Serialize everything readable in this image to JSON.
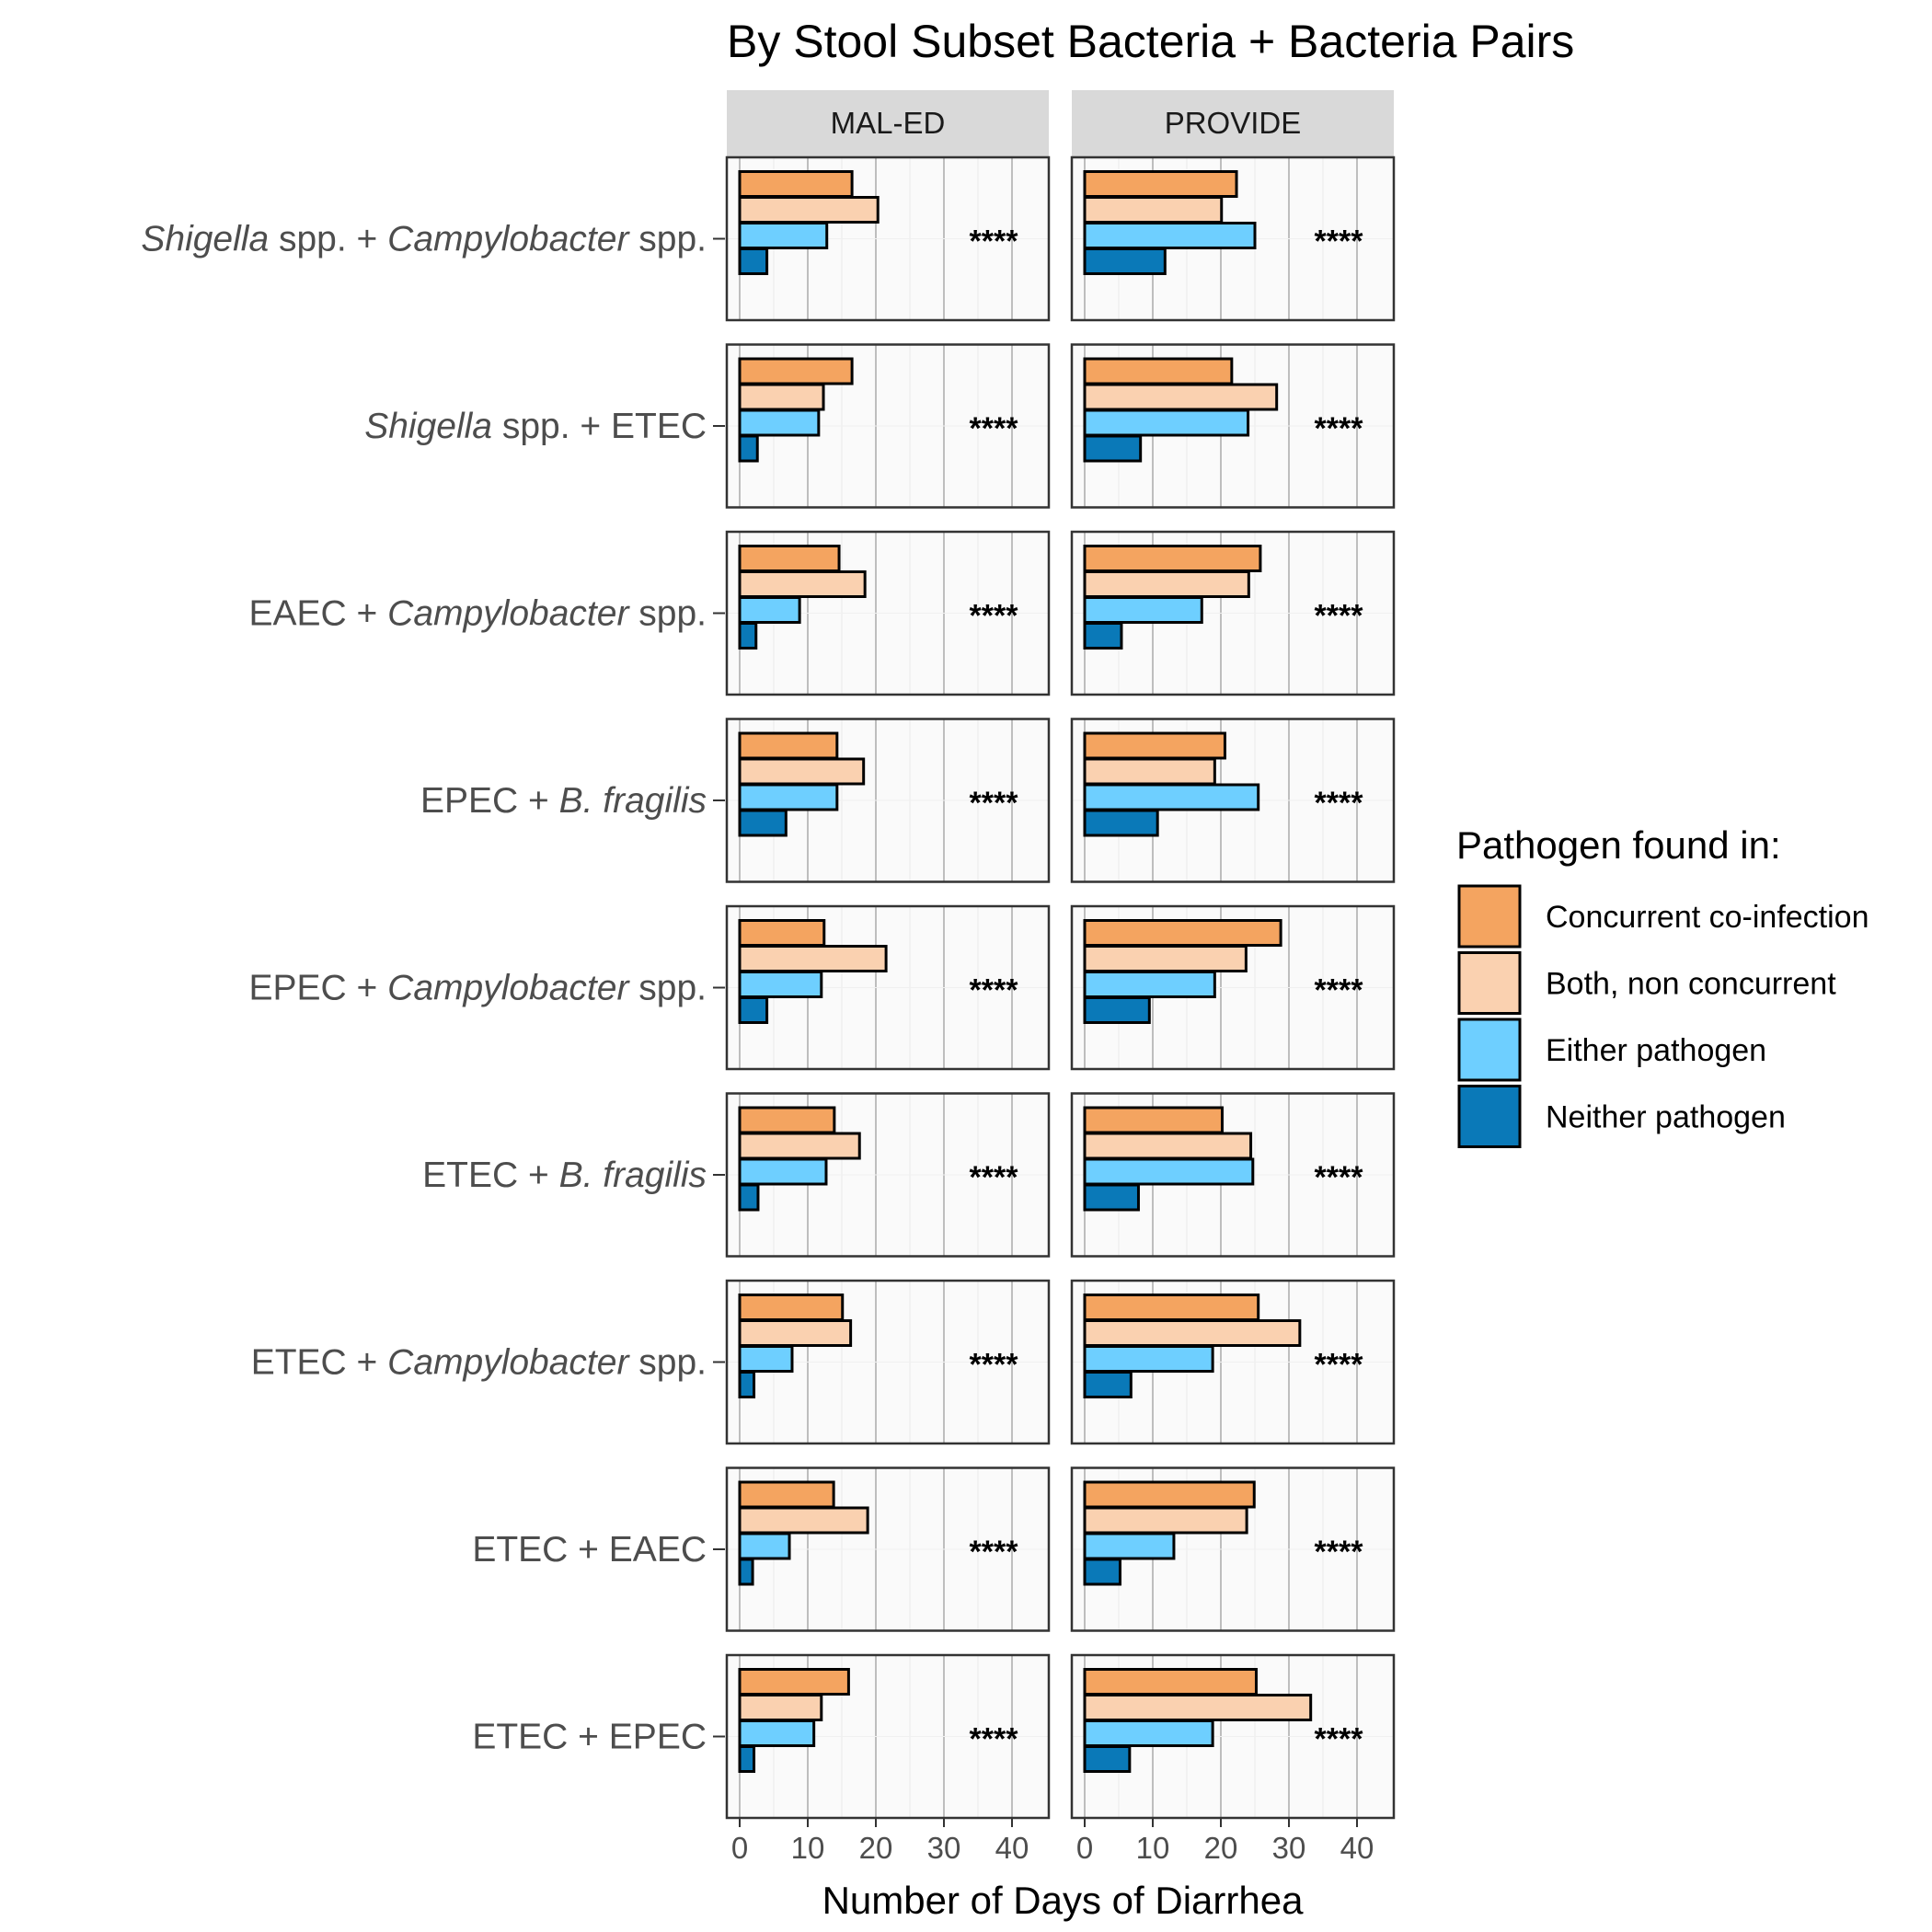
{
  "chart_data": {
    "type": "bar",
    "orientation": "horizontal",
    "title": "By Stool Subset Bacteria + Bacteria Pairs",
    "xlabel": "Number of Days of Diarrhea",
    "ylabel": "",
    "xlim": [
      0,
      45
    ],
    "x_ticks": [
      "0",
      "10",
      "20",
      "30",
      "40"
    ],
    "grid": true,
    "legend_position": "right",
    "legend": {
      "title": "Pathogen found in:",
      "entries": [
        "Concurrent co-infection",
        "Both, non concurrent",
        "Either pathogen",
        "Neither pathogen"
      ]
    },
    "colors": {
      "Concurrent co-infection": "#F4A460",
      "Both, non concurrent": "#FAD1B0",
      "Either pathogen": "#6ECFFF",
      "Neither pathogen": "#0A79B8"
    },
    "panels": [
      "MAL-ED",
      "PROVIDE"
    ],
    "rows": [
      {
        "label": "Shigella spp. + Campylobacter spp.",
        "label_parts": [
          {
            "t": "Shigella",
            "i": true
          },
          {
            "t": " spp. + ",
            "i": false
          },
          {
            "t": "Campylobacter",
            "i": true
          },
          {
            "t": " spp.",
            "i": false
          }
        ],
        "significance": [
          "****",
          "****"
        ],
        "values": {
          "MAL-ED": [
            16.5,
            20.3,
            12.8,
            4.0
          ],
          "PROVIDE": [
            22.3,
            20.1,
            25.0,
            11.8
          ]
        }
      },
      {
        "label": "Shigella spp. + ETEC",
        "label_parts": [
          {
            "t": "Shigella",
            "i": true
          },
          {
            "t": " spp. + ETEC",
            "i": false
          }
        ],
        "significance": [
          "****",
          "****"
        ],
        "values": {
          "MAL-ED": [
            16.5,
            12.3,
            11.6,
            2.6
          ],
          "PROVIDE": [
            21.6,
            28.2,
            24.0,
            8.2
          ]
        }
      },
      {
        "label": "EAEC + Campylobacter spp.",
        "label_parts": [
          {
            "t": "EAEC + ",
            "i": false
          },
          {
            "t": "Campylobacter",
            "i": true
          },
          {
            "t": " spp.",
            "i": false
          }
        ],
        "significance": [
          "****",
          "****"
        ],
        "values": {
          "MAL-ED": [
            14.6,
            18.4,
            8.8,
            2.4
          ],
          "PROVIDE": [
            25.8,
            24.1,
            17.2,
            5.4
          ]
        }
      },
      {
        "label": "EPEC + B. fragilis",
        "label_parts": [
          {
            "t": "EPEC + ",
            "i": false
          },
          {
            "t": "B. fragilis",
            "i": true
          }
        ],
        "significance": [
          "****",
          "****"
        ],
        "values": {
          "MAL-ED": [
            14.3,
            18.2,
            14.3,
            6.8
          ],
          "PROVIDE": [
            20.6,
            19.1,
            25.5,
            10.7
          ]
        }
      },
      {
        "label": "EPEC + Campylobacter spp.",
        "label_parts": [
          {
            "t": "EPEC + ",
            "i": false
          },
          {
            "t": "Campylobacter",
            "i": true
          },
          {
            "t": " spp.",
            "i": false
          }
        ],
        "significance": [
          "****",
          "****"
        ],
        "values": {
          "MAL-ED": [
            12.4,
            21.5,
            12.0,
            4.0
          ],
          "PROVIDE": [
            28.8,
            23.7,
            19.1,
            9.5
          ]
        }
      },
      {
        "label": "ETEC + B. fragilis",
        "label_parts": [
          {
            "t": "ETEC + ",
            "i": false
          },
          {
            "t": "B. fragilis",
            "i": true
          }
        ],
        "significance": [
          "****",
          "****"
        ],
        "values": {
          "MAL-ED": [
            13.9,
            17.6,
            12.7,
            2.7
          ],
          "PROVIDE": [
            20.2,
            24.4,
            24.7,
            7.9
          ]
        }
      },
      {
        "label": "ETEC + Campylobacter spp.",
        "label_parts": [
          {
            "t": "ETEC + ",
            "i": false
          },
          {
            "t": "Campylobacter",
            "i": true
          },
          {
            "t": " spp.",
            "i": false
          }
        ],
        "significance": [
          "****",
          "****"
        ],
        "values": {
          "MAL-ED": [
            15.1,
            16.3,
            7.7,
            2.1
          ],
          "PROVIDE": [
            25.5,
            31.6,
            18.8,
            6.8
          ]
        }
      },
      {
        "label": "ETEC + EAEC",
        "label_parts": [
          {
            "t": "ETEC + EAEC",
            "i": false
          }
        ],
        "significance": [
          "****",
          "****"
        ],
        "values": {
          "MAL-ED": [
            13.8,
            18.8,
            7.3,
            1.9
          ],
          "PROVIDE": [
            24.9,
            23.8,
            13.1,
            5.2
          ]
        }
      },
      {
        "label": "ETEC + EPEC",
        "label_parts": [
          {
            "t": "ETEC + EPEC",
            "i": false
          }
        ],
        "significance": [
          "****",
          "****"
        ],
        "values": {
          "MAL-ED": [
            16.0,
            12.0,
            10.9,
            2.1
          ],
          "PROVIDE": [
            25.2,
            33.2,
            18.8,
            6.6
          ]
        }
      }
    ]
  }
}
